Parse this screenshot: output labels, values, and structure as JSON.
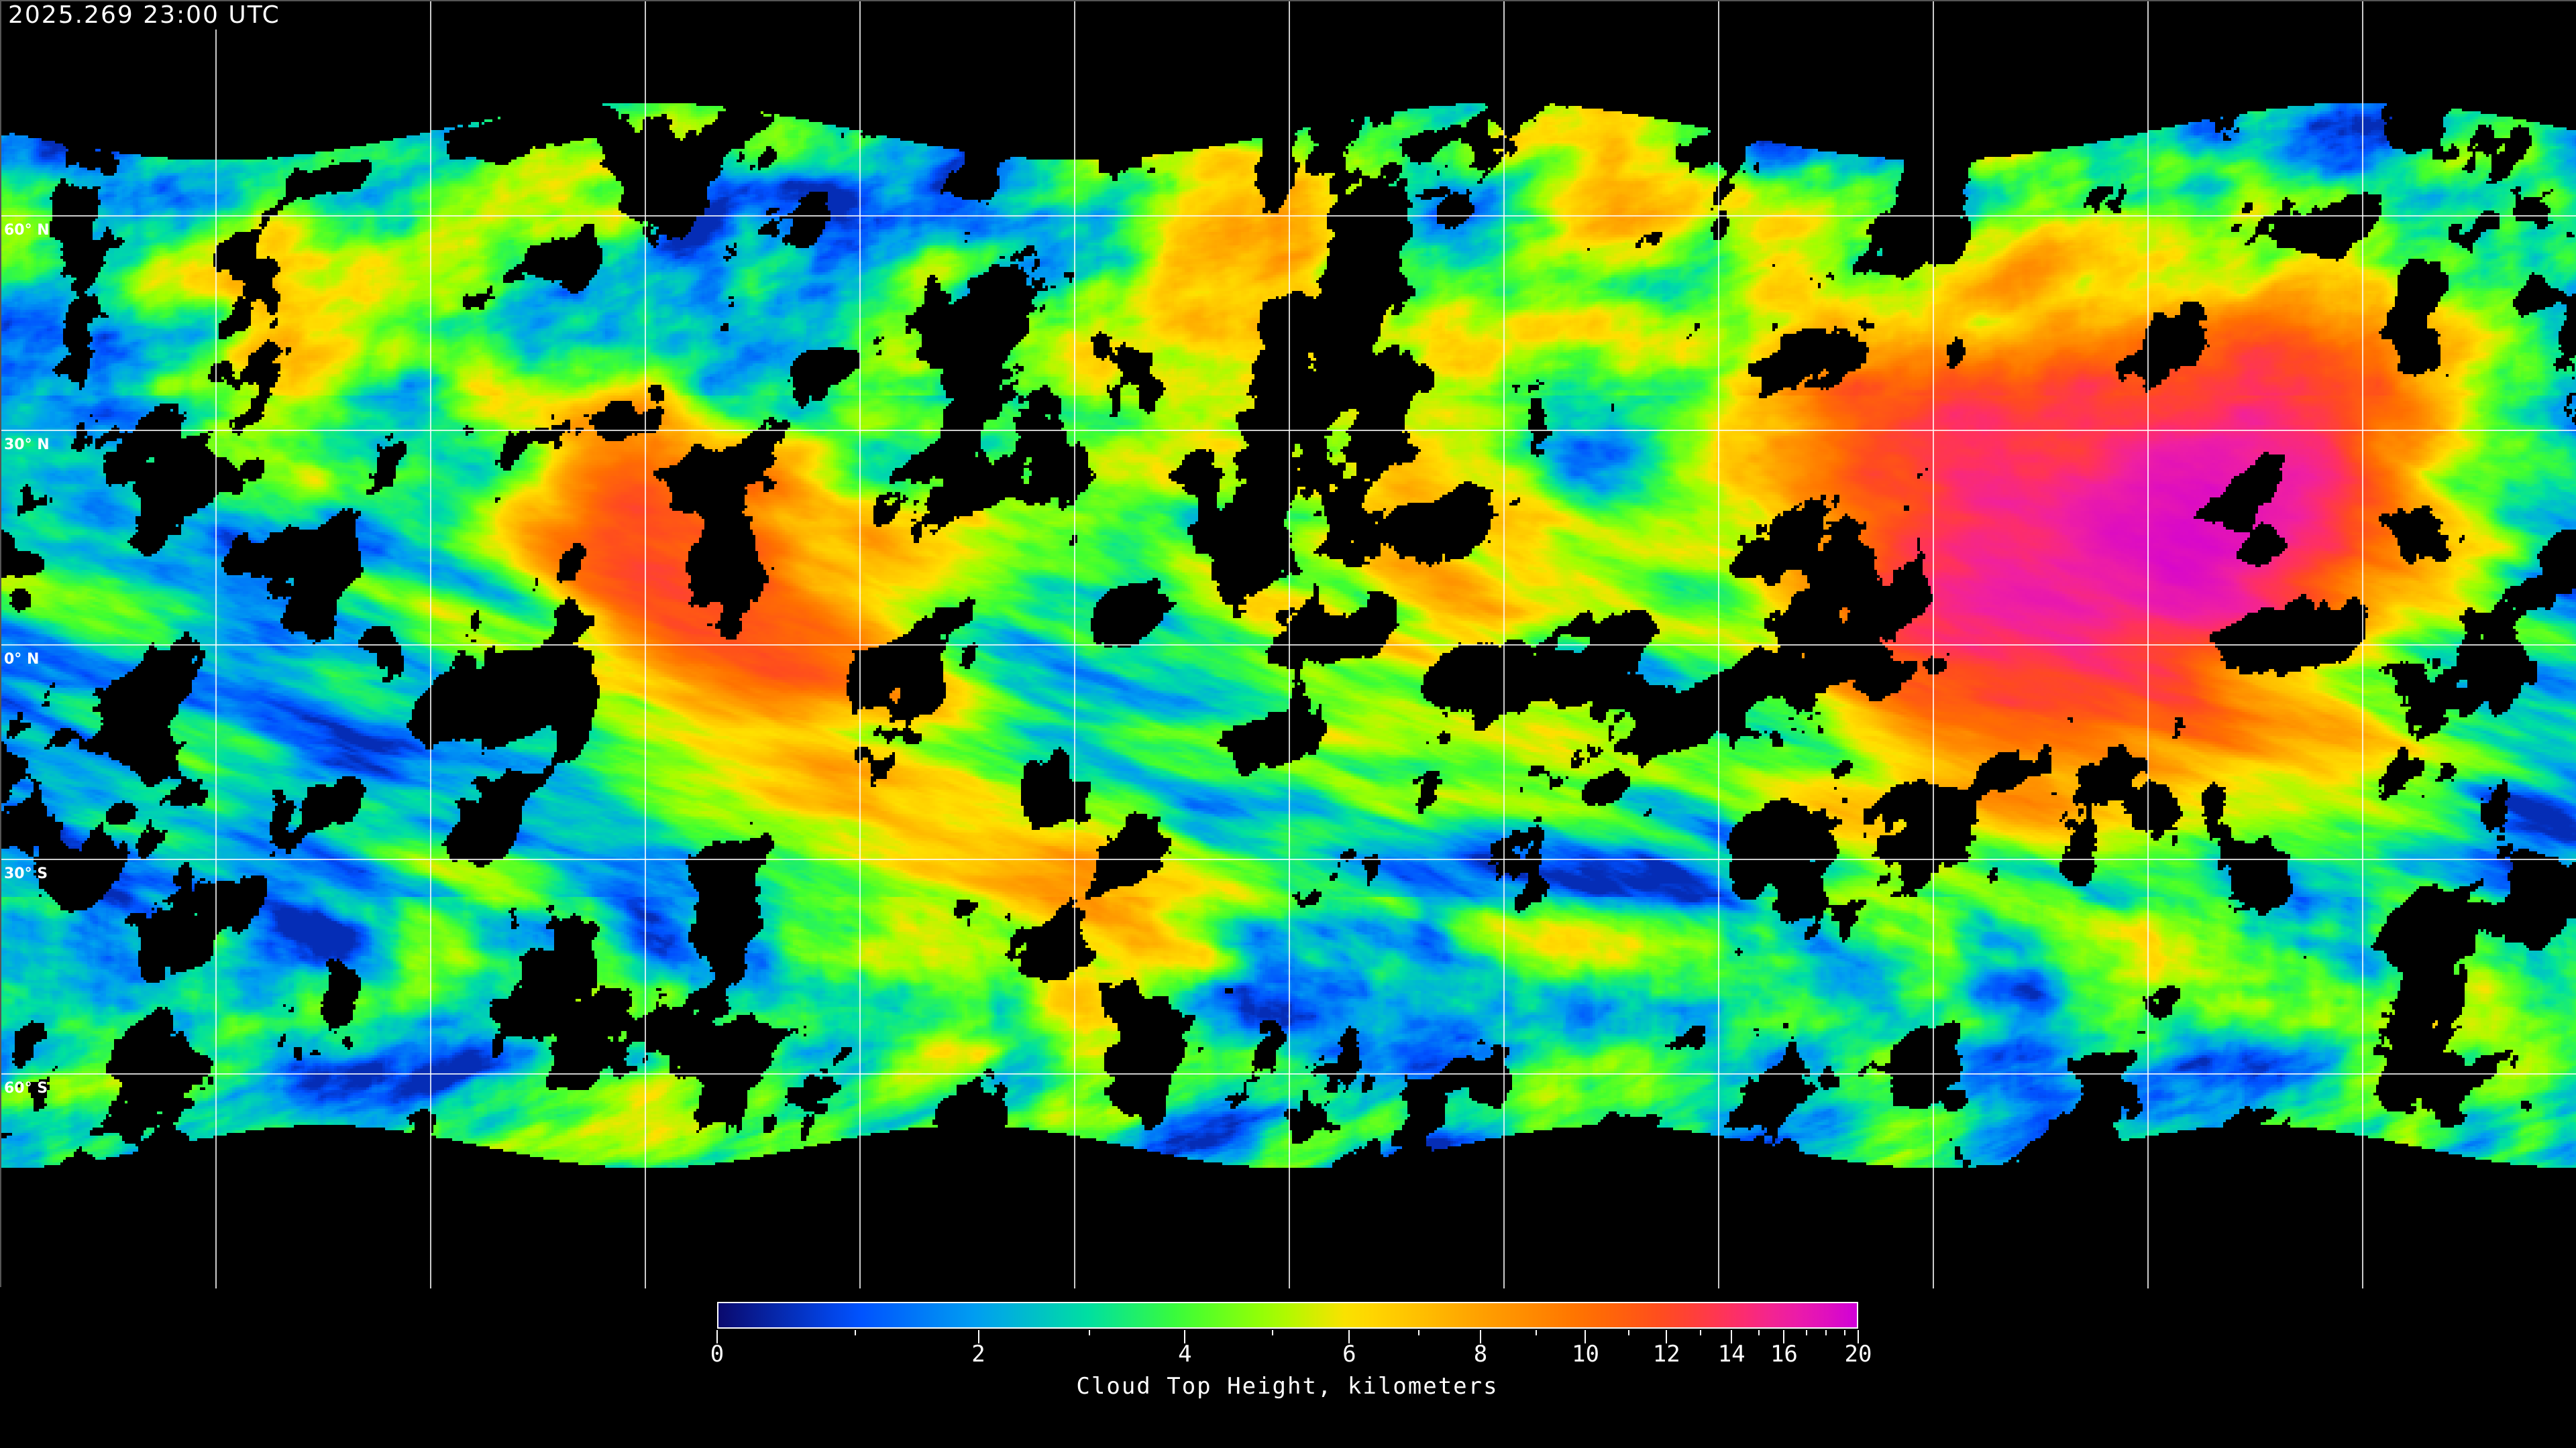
{
  "title": "2025.269 23:00 UTC",
  "map": {
    "projection": "equirectangular",
    "lat_labels": [
      "60° N",
      "30° N",
      "0° N",
      "30° S",
      "60° S"
    ],
    "grid": "on",
    "grid_color": "#ffffff",
    "coastline_color": "#ffffff",
    "no_data_color": "#000000"
  },
  "colorbar": {
    "label": "Cloud Top Height, kilometers",
    "range": [
      0,
      20
    ],
    "tick_labels": [
      "0",
      "2",
      "4",
      "6",
      "8",
      "10",
      "12",
      "14",
      "16",
      "20"
    ],
    "major_ticks": [
      0,
      2,
      4,
      6,
      8,
      10,
      12,
      14,
      16,
      20
    ],
    "minor_ticks": [
      1,
      3,
      5,
      7,
      9,
      11,
      13,
      15,
      17,
      18,
      19
    ],
    "stops": [
      [
        0,
        "#0a0a6e"
      ],
      [
        1,
        "#0050ff"
      ],
      [
        2,
        "#00a0f0"
      ],
      [
        3,
        "#00e0a0"
      ],
      [
        4,
        "#40ff30"
      ],
      [
        5,
        "#a0ff00"
      ],
      [
        6,
        "#ffe000"
      ],
      [
        8,
        "#ffa000"
      ],
      [
        10,
        "#ff7000"
      ],
      [
        12,
        "#ff4a20"
      ],
      [
        14,
        "#ff3060"
      ],
      [
        16,
        "#f020a0"
      ],
      [
        20,
        "#d000d8"
      ]
    ]
  }
}
